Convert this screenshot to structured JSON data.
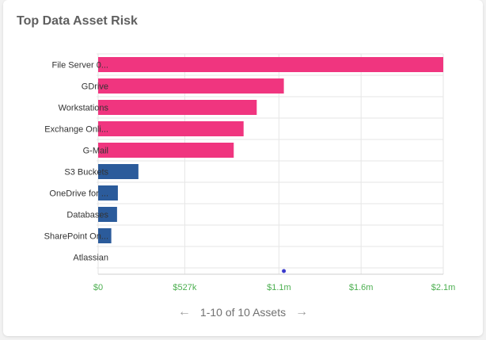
{
  "widget": {
    "title": "Top Data Asset Risk"
  },
  "pagination": {
    "label": "1-10 of 10 Assets",
    "prev_icon": "arrow-left-icon",
    "next_icon": "arrow-right-icon"
  },
  "colors": {
    "high": "#f0357f",
    "low": "#2b5b9b",
    "axis_tick_label": "#4caf50",
    "marker": "#3a3acc"
  },
  "chart_data": {
    "type": "bar",
    "orientation": "horizontal",
    "title": "Top Data Asset Risk",
    "categories": [
      "File Server 0...",
      "GDrive",
      "Workstations",
      "Exchange Onli...",
      "G-Mail",
      "S3 Buckets",
      "OneDrive for ...",
      "Databases",
      "SharePoint On...",
      "Atlassian"
    ],
    "values": [
      2100000,
      1130000,
      965000,
      885000,
      825000,
      245000,
      120000,
      115000,
      80000,
      0
    ],
    "bar_colors": [
      "#f0357f",
      "#f0357f",
      "#f0357f",
      "#f0357f",
      "#f0357f",
      "#2b5b9b",
      "#2b5b9b",
      "#2b5b9b",
      "#2b5b9b",
      "#2b5b9b"
    ],
    "x_ticks": [
      0,
      527000,
      1100000,
      1600000,
      2100000
    ],
    "x_tick_labels": [
      "$0",
      "$527k",
      "$1.1m",
      "$1.6m",
      "$2.1m"
    ],
    "xlim": [
      0,
      2100000
    ],
    "xlabel": "",
    "ylabel": "",
    "grid": true,
    "marker_value": 1130000
  }
}
